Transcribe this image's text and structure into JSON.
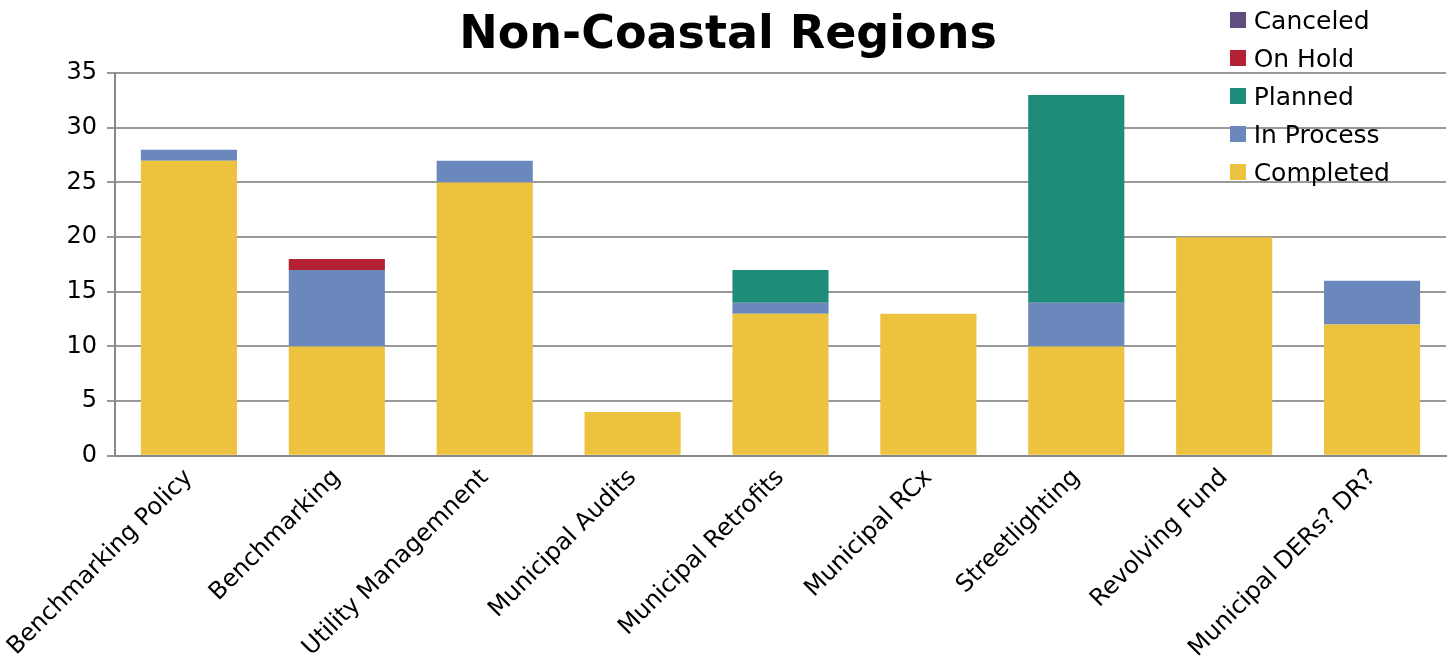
{
  "chart_data": {
    "type": "bar",
    "title": "Non-Coastal Regions",
    "stacked": true,
    "grid": "y",
    "legend": "top right",
    "categories": [
      "Benchmarking Policy",
      "Benchmarking",
      "Utility Managemnent",
      "Municipal Audits",
      "Municipal Retrofits",
      "Municipal RCx",
      "Streetlighting",
      "Revolving Fund",
      "Municipal DERs? DR?"
    ],
    "ylim": [
      0,
      35
    ],
    "yticks": [
      0,
      5,
      10,
      15,
      20,
      25,
      30,
      35
    ],
    "series": [
      {
        "name": "Completed",
        "color": "#ecc23e",
        "values": [
          27,
          10,
          25,
          4,
          13,
          13,
          10,
          20,
          12
        ]
      },
      {
        "name": "In Process",
        "color": "#6a88bb",
        "values": [
          1,
          7,
          2,
          0,
          1,
          0,
          4,
          0,
          4
        ]
      },
      {
        "name": "Planned",
        "color": "#1e8c79",
        "values": [
          0,
          0,
          0,
          0,
          3,
          0,
          19,
          0,
          0
        ]
      },
      {
        "name": "On Hold",
        "color": "#b22234",
        "values": [
          0,
          1,
          0,
          0,
          0,
          0,
          0,
          0,
          0
        ]
      },
      {
        "name": "Canceled",
        "color": "#604f7e",
        "values": [
          0,
          0,
          0,
          0,
          0,
          0,
          0,
          0,
          0
        ]
      }
    ]
  }
}
